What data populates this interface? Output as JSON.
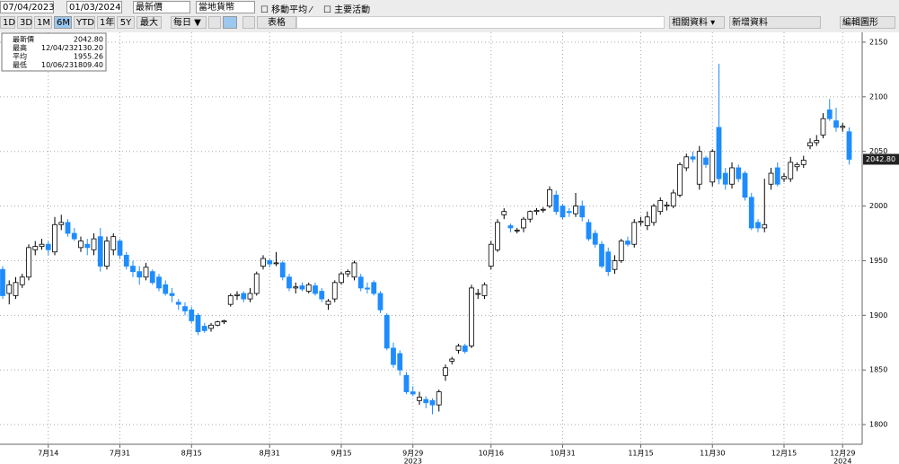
{
  "toolbar": {
    "start_date": "07/04/2023",
    "end_date": "01/03/2024",
    "price_field": "最新價",
    "currency": "當地貨幣",
    "moving_average": "移動平均",
    "key_events": "主要活動",
    "ranges": [
      "1D",
      "3D",
      "1M",
      "6M",
      "YTD",
      "1年",
      "5Y",
      "最大"
    ],
    "active_range": "6M",
    "frequency": "每日 ▼",
    "table": "表格",
    "related": "相關資料 ▾",
    "add_data": "新增資料",
    "edit_chart": "編輯圖形"
  },
  "chart_data": {
    "type": "candlestick",
    "legend": [
      {
        "name": "最新價",
        "date": null,
        "value": "2042.80"
      },
      {
        "name": "最高",
        "date": "12/04/23",
        "value": "2130.20"
      },
      {
        "name": "平均",
        "date": null,
        "value": "1955.26"
      },
      {
        "name": "最低",
        "date": "10/06/23",
        "value": "1809.40"
      }
    ],
    "last_price_label": "2042.80",
    "categories": [
      null,
      null,
      null,
      null,
      null,
      null,
      null,
      "7月14",
      null,
      null,
      null,
      null,
      null,
      null,
      null,
      null,
      null,
      null,
      "7月31",
      null,
      null,
      null,
      null,
      null,
      null,
      null,
      null,
      null,
      null,
      "8月15",
      null,
      null,
      null,
      null,
      null,
      null,
      null,
      null,
      null,
      null,
      null,
      "8月31",
      null,
      null,
      null,
      null,
      null,
      null,
      null,
      null,
      null,
      null,
      "9月15",
      null,
      null,
      null,
      null,
      null,
      null,
      null,
      null,
      null,
      null,
      "9月29",
      null,
      null,
      null,
      null,
      null,
      null,
      null,
      null,
      null,
      null,
      null,
      "10月16",
      null,
      null,
      null,
      null,
      null,
      null,
      null,
      null,
      null,
      null,
      "10月31",
      null,
      null,
      null,
      null,
      null,
      null,
      null,
      null,
      null,
      null,
      null,
      "11月15",
      null,
      null,
      null,
      null,
      null,
      null,
      null,
      null,
      null,
      null,
      "11月30",
      null,
      null,
      null,
      null,
      null,
      null,
      null,
      null,
      null,
      null,
      "12月15",
      null,
      null,
      null,
      null,
      null,
      null,
      null,
      null,
      "12月29",
      null
    ],
    "year_labels": [
      {
        "at": "9月29",
        "label": "2023"
      },
      {
        "at": "12月29",
        "label": "2024"
      }
    ],
    "open": [
      1942,
      1920,
      1918,
      1928,
      1935,
      1960,
      1963,
      1965,
      1958,
      1983,
      1985,
      1975,
      1962,
      1965,
      1960,
      1972,
      1945,
      1960,
      1968,
      1955,
      1945,
      1940,
      1935,
      1940,
      1935,
      1928,
      1920,
      1912,
      1908,
      1905,
      1900,
      1890,
      1888,
      1891,
      1894,
      1910,
      1918,
      1920,
      1915,
      1920,
      1945,
      1950,
      1948,
      1948,
      1935,
      1925,
      1927,
      1922,
      1927,
      1922,
      1910,
      1915,
      1930,
      1938,
      1935,
      1935,
      1925,
      1930,
      1920,
      1900,
      1870,
      1865,
      1845,
      1830,
      1822,
      1823,
      1822,
      1818,
      1845,
      1858,
      1868,
      1872,
      1872,
      1920,
      1918,
      1945,
      1960,
      1992,
      1982,
      1978,
      1980,
      1988,
      1995,
      1997,
      2000,
      2010,
      2000,
      1995,
      1993,
      2000,
      1985,
      1975,
      1965,
      1958,
      1942,
      1950,
      1968,
      1965,
      1985,
      1982,
      1985,
      1995,
      2000,
      2000,
      2010,
      2035,
      2045,
      2020,
      2044,
      2022,
      2072,
      2030,
      2020,
      2035,
      2030,
      2008,
      1985,
      1980,
      2020,
      2035,
      2025,
      2025,
      2036,
      2038,
      2055,
      2058,
      2065,
      2088,
      2078,
      2072,
      2068
    ],
    "high": [
      1945,
      1932,
      1935,
      1938,
      1965,
      1968,
      1970,
      1968,
      1990,
      1992,
      1988,
      1980,
      1972,
      1970,
      1975,
      1980,
      1972,
      1975,
      1970,
      1958,
      1950,
      1945,
      1948,
      1942,
      1938,
      1932,
      1925,
      1915,
      1912,
      1908,
      1902,
      1893,
      1893,
      1895,
      1896,
      1920,
      1922,
      1922,
      1925,
      1940,
      1955,
      1952,
      1958,
      1950,
      1938,
      1930,
      1930,
      1930,
      1930,
      1925,
      1915,
      1932,
      1940,
      1942,
      1950,
      1938,
      1930,
      1932,
      1922,
      1902,
      1875,
      1868,
      1848,
      1835,
      1830,
      1826,
      1824,
      1832,
      1855,
      1862,
      1874,
      1874,
      1928,
      1924,
      1930,
      1968,
      1988,
      1998,
      1984,
      1980,
      1990,
      1996,
      1998,
      1999,
      2018,
      2014,
      2002,
      1998,
      2012,
      2005,
      1988,
      1978,
      1968,
      1962,
      1955,
      1970,
      1972,
      1988,
      1990,
      1995,
      2002,
      2008,
      2004,
      2015,
      2040,
      2048,
      2050,
      2055,
      2046,
      2052,
      2130.2,
      2035,
      2040,
      2038,
      2032,
      2012,
      1988,
      2025,
      2035,
      2040,
      2030,
      2045,
      2040,
      2046,
      2062,
      2065,
      2085,
      2098,
      2090,
      2076,
      2072
    ],
    "low": [
      1915,
      1910,
      1915,
      1925,
      1932,
      1955,
      1960,
      1955,
      1955,
      1978,
      1972,
      1968,
      1958,
      1955,
      1955,
      1940,
      1942,
      1955,
      1952,
      1942,
      1935,
      1928,
      1932,
      1928,
      1922,
      1918,
      1912,
      1905,
      1900,
      1893,
      1882,
      1884,
      1885,
      1890,
      1892,
      1908,
      1914,
      1912,
      1912,
      1918,
      1942,
      1944,
      1945,
      1932,
      1922,
      1920,
      1922,
      1920,
      1918,
      1912,
      1905,
      1912,
      1928,
      1935,
      1932,
      1922,
      1920,
      1918,
      1902,
      1868,
      1852,
      1845,
      1828,
      1826,
      1818,
      1815,
      1809.4,
      1812,
      1840,
      1855,
      1865,
      1865,
      1870,
      1915,
      1915,
      1942,
      1958,
      1988,
      1976,
      1975,
      1976,
      1985,
      1992,
      1994,
      1998,
      1992,
      1988,
      1990,
      1990,
      1986,
      1968,
      1962,
      1943,
      1936,
      1938,
      1948,
      1963,
      1962,
      1982,
      1978,
      1982,
      1992,
      1996,
      1998,
      2008,
      2032,
      2040,
      2015,
      2035,
      2018,
      2020,
      2015,
      2016,
      2022,
      2005,
      1978,
      1976,
      1976,
      2015,
      2018,
      2022,
      2022,
      2032,
      2035,
      2052,
      2055,
      2062,
      2078,
      2068,
      2068,
      2038
    ],
    "close": [
      1918,
      1928,
      1930,
      1935,
      1962,
      1963,
      1965,
      1960,
      1983,
      1985,
      1975,
      1970,
      1968,
      1962,
      1970,
      1945,
      1968,
      1972,
      1955,
      1945,
      1940,
      1935,
      1944,
      1930,
      1925,
      1920,
      1918,
      1910,
      1904,
      1895,
      1885,
      1886,
      1891,
      1894,
      1895,
      1918,
      1919,
      1915,
      1920,
      1938,
      1952,
      1947,
      1948,
      1935,
      1925,
      1926,
      1924,
      1928,
      1920,
      1915,
      1913,
      1930,
      1938,
      1940,
      1948,
      1925,
      1924,
      1920,
      1905,
      1870,
      1855,
      1850,
      1830,
      1828,
      1825,
      1820,
      1818,
      1830,
      1852,
      1860,
      1872,
      1867,
      1925,
      1920,
      1928,
      1965,
      1985,
      1995,
      1980,
      1978,
      1988,
      1995,
      1996,
      1997,
      2015,
      1995,
      1990,
      1994,
      2000,
      1990,
      1970,
      1965,
      1945,
      1940,
      1950,
      1968,
      1965,
      1985,
      1986,
      1990,
      2000,
      2005,
      2001,
      2012,
      2038,
      2045,
      2043,
      2050,
      2038,
      2050,
      2025,
      2020,
      2035,
      2025,
      2008,
      1980,
      1980,
      1983,
      2030,
      2020,
      2027,
      2040,
      2038,
      2042,
      2058,
      2060,
      2080,
      2080,
      2072,
      2073,
      2042.8
    ],
    "up_color": "#ffffff",
    "down_color": "#1e8cff",
    "ylim": [
      1782,
      2159
    ],
    "yticks": [
      1800,
      1850,
      1900,
      1950,
      2000,
      2050,
      2100,
      2150
    ],
    "grid": true
  }
}
